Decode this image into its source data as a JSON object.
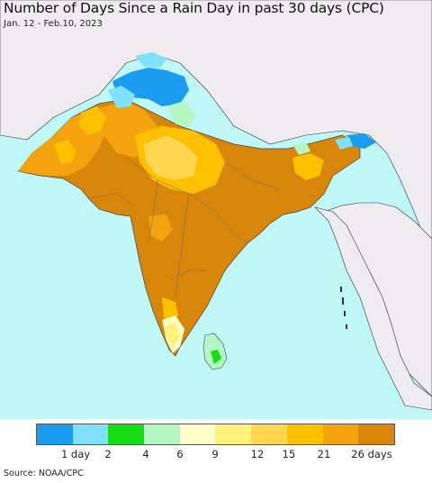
{
  "map": {
    "title": "Number of Days Since a Rain Day in past 30 days (CPC)",
    "date_range": "Jan. 12 - Feb.10, 2023",
    "source": "Source: NOAA/CPC",
    "ocean_color": "#bff7f7",
    "land_outside_color": "#efecef"
  },
  "legend": {
    "colors": [
      "#1a9cf0",
      "#7fe0ff",
      "#16dc16",
      "#b4f7c4",
      "#ffffc8",
      "#fff27a",
      "#ffd650",
      "#ffc000",
      "#f5a20f",
      "#d8860a"
    ],
    "labels": [
      {
        "text": "1 day"
      },
      {
        "text": "2"
      },
      {
        "text": "4"
      },
      {
        "text": "6"
      },
      {
        "text": "9"
      },
      {
        "text": "12"
      },
      {
        "text": "15"
      },
      {
        "text": "21"
      },
      {
        "text": "26 days"
      }
    ]
  }
}
